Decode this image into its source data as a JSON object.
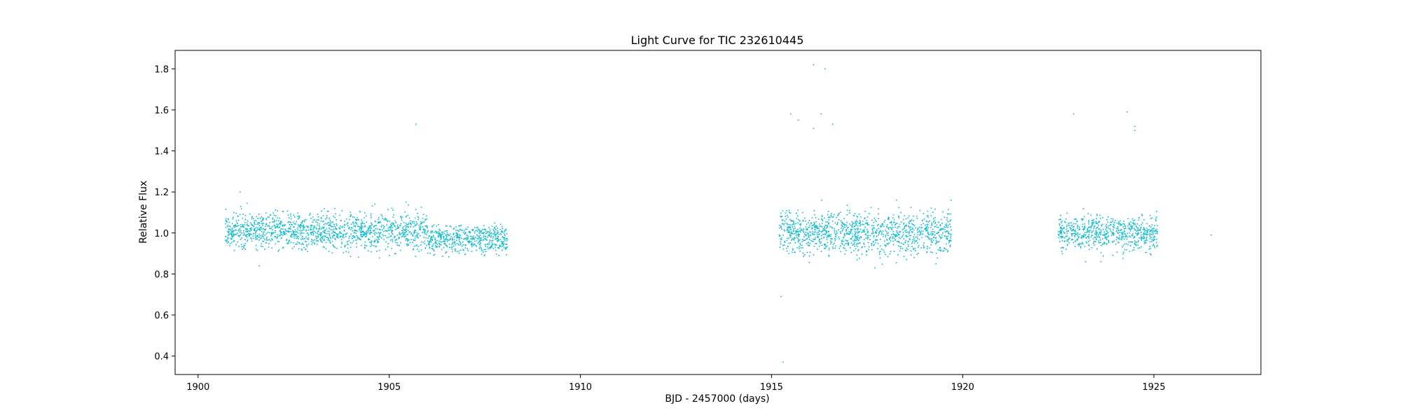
{
  "chart_data": {
    "type": "scatter",
    "title": "Light Curve for TIC 232610445",
    "xlabel": "BJD - 2457000 (days)",
    "ylabel": "Relative Flux",
    "xlim": [
      1899.4,
      1927.8
    ],
    "ylim": [
      0.31,
      1.89
    ],
    "x_ticks": [
      1900,
      1905,
      1910,
      1915,
      1920,
      1925
    ],
    "x_tick_labels": [
      "1900",
      "1905",
      "1910",
      "1915",
      "1920",
      "1925"
    ],
    "y_ticks": [
      0.4,
      0.6,
      0.8,
      1.0,
      1.2,
      1.4,
      1.6,
      1.8
    ],
    "y_tick_labels": [
      "0.4",
      "0.6",
      "0.8",
      "1.0",
      "1.2",
      "1.4",
      "1.6",
      "1.8"
    ],
    "grid": false,
    "marker_color": "#17becf",
    "series": [
      {
        "segments": [
          {
            "x_start": 1900.7,
            "x_end": 1906.0,
            "typical_flux": 1.01,
            "flux_range": [
              0.87,
              1.15
            ]
          },
          {
            "x_start": 1906.0,
            "x_end": 1908.1,
            "typical_flux": 0.97,
            "flux_range": [
              0.88,
              1.1
            ]
          },
          {
            "x_start": 1915.2,
            "x_end": 1919.7,
            "typical_flux": 1.0,
            "flux_range": [
              0.82,
              1.16
            ]
          },
          {
            "x_start": 1922.5,
            "x_end": 1925.1,
            "typical_flux": 1.0,
            "flux_range": [
              0.86,
              1.12
            ]
          }
        ],
        "outliers": [
          {
            "x": 1901.1,
            "y": 1.2
          },
          {
            "x": 1901.6,
            "y": 0.84
          },
          {
            "x": 1905.7,
            "y": 1.53
          },
          {
            "x": 1915.25,
            "y": 0.69
          },
          {
            "x": 1915.3,
            "y": 0.37
          },
          {
            "x": 1915.5,
            "y": 1.58
          },
          {
            "x": 1915.7,
            "y": 1.55
          },
          {
            "x": 1916.1,
            "y": 1.82
          },
          {
            "x": 1916.1,
            "y": 1.51
          },
          {
            "x": 1916.3,
            "y": 1.58
          },
          {
            "x": 1916.4,
            "y": 1.8
          },
          {
            "x": 1916.6,
            "y": 1.53
          },
          {
            "x": 1922.9,
            "y": 1.58
          },
          {
            "x": 1924.3,
            "y": 1.59
          },
          {
            "x": 1924.5,
            "y": 1.52
          },
          {
            "x": 1924.5,
            "y": 1.5
          },
          {
            "x": 1926.5,
            "y": 0.99
          }
        ]
      }
    ]
  }
}
